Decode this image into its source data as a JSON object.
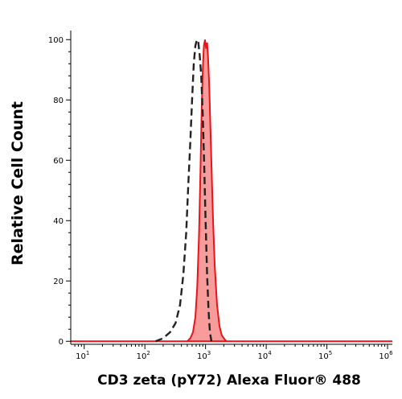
{
  "chart_data": {
    "type": "area",
    "xlabel": "CD3 zeta (pY72) Alexa Fluor® 488",
    "ylabel": "Relative Cell Count",
    "x_scale": "log",
    "xlim": [
      6,
      1200000
    ],
    "ylim": [
      -1,
      103
    ],
    "x_ticks": [
      {
        "base": "10",
        "exp": "1"
      },
      {
        "base": "10",
        "exp": "2"
      },
      {
        "base": "10",
        "exp": "3"
      },
      {
        "base": "10",
        "exp": "4"
      },
      {
        "base": "10",
        "exp": "5"
      },
      {
        "base": "10",
        "exp": "6"
      }
    ],
    "y_ticks": [
      "0",
      "20",
      "40",
      "60",
      "80",
      "100"
    ],
    "grid": false,
    "series": [
      {
        "style": "dashed",
        "color": "#222222",
        "x": [
          150,
          200,
          260,
          320,
          380,
          430,
          480,
          520,
          560,
          600,
          640,
          680,
          720,
          760,
          800,
          850,
          900,
          950,
          1000,
          1060,
          1120,
          1180,
          1250
        ],
        "y": [
          0,
          1,
          3,
          6,
          12,
          22,
          36,
          52,
          66,
          80,
          92,
          98,
          100,
          99,
          95,
          88,
          75,
          58,
          40,
          22,
          10,
          3,
          0
        ]
      },
      {
        "style": "filled",
        "color": "#e8141b",
        "fill": "#f79b9b",
        "x": [
          500,
          560,
          620,
          680,
          730,
          780,
          820,
          860,
          900,
          940,
          980,
          1020,
          1060,
          1100,
          1150,
          1200,
          1260,
          1330,
          1420,
          1550,
          1700,
          1850,
          2000,
          2200
        ],
        "y": [
          0,
          1,
          3,
          8,
          18,
          35,
          55,
          75,
          90,
          98,
          100,
          97,
          99,
          94,
          85,
          72,
          57,
          40,
          25,
          12,
          5,
          2,
          1,
          0
        ]
      }
    ]
  }
}
